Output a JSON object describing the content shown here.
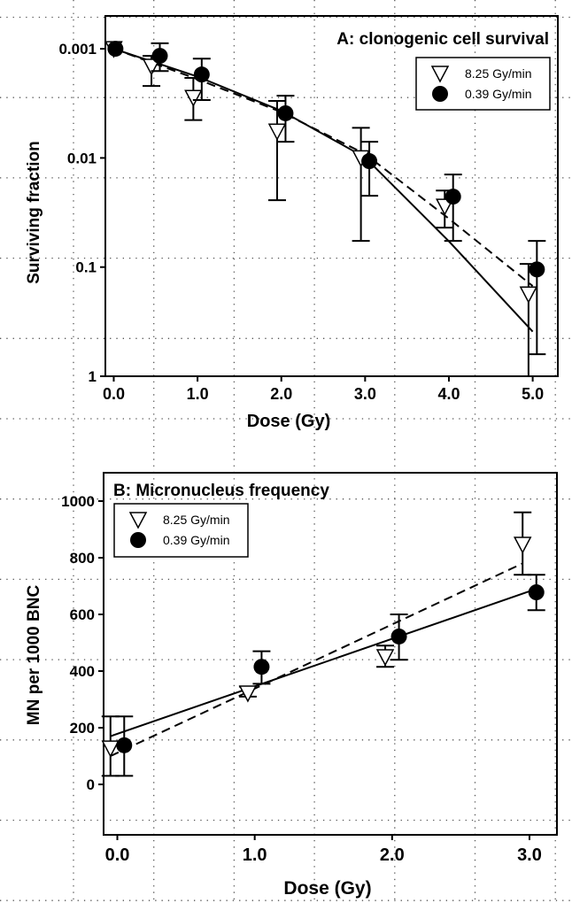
{
  "chart_data": [
    {
      "type": "scatter",
      "title": "A: clonogenic cell survival",
      "xlabel": "Dose (Gy)",
      "ylabel": "Surviving fraction",
      "yscale": "log",
      "xlim": [
        -0.1,
        5.3
      ],
      "ylim": [
        0.0005,
        1
      ],
      "x_ticks": [
        0,
        1,
        2,
        3,
        4,
        5
      ],
      "x_tick_labels": [
        "0.0",
        "1.0",
        "2.0",
        "3.0",
        "4.0",
        "5.0"
      ],
      "y_ticks": [
        0.001,
        0.01,
        0.1,
        1
      ],
      "y_tick_labels": [
        "0.001",
        "0.01",
        "0.1",
        "1"
      ],
      "legend_position": "top-right",
      "series": [
        {
          "name": "8.25 Gy/min",
          "marker": "open-triangle-down",
          "fit_style": "dashed",
          "points": [
            {
              "x": 0.0,
              "y": 0.001,
              "lo": 0.001,
              "hi": 0.001
            },
            {
              "x": 0.45,
              "y": 0.00145,
              "lo": 0.00116,
              "hi": 0.00219
            },
            {
              "x": 0.95,
              "y": 0.0028,
              "lo": 0.00185,
              "hi": 0.0045
            },
            {
              "x": 1.95,
              "y": 0.0057,
              "lo": 0.003,
              "hi": 0.0244
            },
            {
              "x": 2.95,
              "y": 0.01,
              "lo": 0.0053,
              "hi": 0.0575
            },
            {
              "x": 3.95,
              "y": 0.0278,
              "lo": 0.0199,
              "hi": 0.0435
            },
            {
              "x": 4.95,
              "y": 0.177,
              "lo": 0.0935,
              "hi": 1
            }
          ],
          "fit": [
            [
              0,
              0.001
            ],
            [
              1,
              0.0019
            ],
            [
              2,
              0.0038
            ],
            [
              3,
              0.0092
            ],
            [
              4,
              0.036
            ],
            [
              5,
              0.149
            ]
          ]
        },
        {
          "name": "0.39 Gy/min",
          "marker": "filled-circle",
          "fit_style": "solid",
          "points": [
            {
              "x": 0.02,
              "y": 0.001,
              "lo": 0.001,
              "hi": 0.001
            },
            {
              "x": 0.55,
              "y": 0.00116,
              "lo": 0.00089,
              "hi": 0.0016
            },
            {
              "x": 1.05,
              "y": 0.00172,
              "lo": 0.00123,
              "hi": 0.00295
            },
            {
              "x": 2.05,
              "y": 0.0039,
              "lo": 0.00269,
              "hi": 0.0071
            },
            {
              "x": 3.05,
              "y": 0.0107,
              "lo": 0.0071,
              "hi": 0.0222
            },
            {
              "x": 4.05,
              "y": 0.0226,
              "lo": 0.0142,
              "hi": 0.0575
            },
            {
              "x": 5.05,
              "y": 0.105,
              "lo": 0.0575,
              "hi": 0.628
            }
          ],
          "fit": [
            [
              0,
              0.001
            ],
            [
              1,
              0.0018
            ],
            [
              2,
              0.0037
            ],
            [
              3,
              0.0099
            ],
            [
              4,
              0.058
            ],
            [
              5,
              0.39
            ]
          ]
        }
      ]
    },
    {
      "type": "scatter",
      "title": "B: Micronucleus frequency",
      "xlabel": "Dose (Gy)",
      "ylabel": "MN per 1000 BNC",
      "yscale": "linear",
      "xlim": [
        -0.1,
        3.2
      ],
      "ylim": [
        -178,
        1100
      ],
      "x_ticks": [
        0,
        1,
        2,
        3
      ],
      "x_tick_labels": [
        "0.0",
        "1.0",
        "2.0",
        "3.0"
      ],
      "y_ticks": [
        0,
        200,
        400,
        600,
        800,
        1000
      ],
      "y_tick_labels": [
        "0",
        "200",
        "400",
        "600",
        "800",
        "1000"
      ],
      "legend_position": "top-left",
      "series": [
        {
          "name": "8.25 Gy/min",
          "marker": "open-triangle-down",
          "fit_style": "dashed",
          "points": [
            {
              "x": -0.05,
              "y": 128,
              "lo": 30,
              "hi": 240
            },
            {
              "x": 0.95,
              "y": 322,
              "lo": 310,
              "hi": 345
            },
            {
              "x": 1.95,
              "y": 450,
              "lo": 415,
              "hi": 490
            },
            {
              "x": 2.95,
              "y": 847,
              "lo": 740,
              "hi": 960
            }
          ],
          "fit": [
            [
              -0.05,
              100
            ],
            [
              2.95,
              780
            ]
          ]
        },
        {
          "name": "0.39 Gy/min",
          "marker": "filled-circle",
          "fit_style": "solid",
          "points": [
            {
              "x": 0.05,
              "y": 138,
              "lo": 30,
              "hi": 240
            },
            {
              "x": 1.05,
              "y": 415,
              "lo": 355,
              "hi": 470
            },
            {
              "x": 2.05,
              "y": 522,
              "lo": 440,
              "hi": 600
            },
            {
              "x": 3.05,
              "y": 678,
              "lo": 615,
              "hi": 740
            }
          ],
          "fit": [
            [
              -0.05,
              170
            ],
            [
              3.05,
              690
            ]
          ]
        }
      ]
    }
  ]
}
